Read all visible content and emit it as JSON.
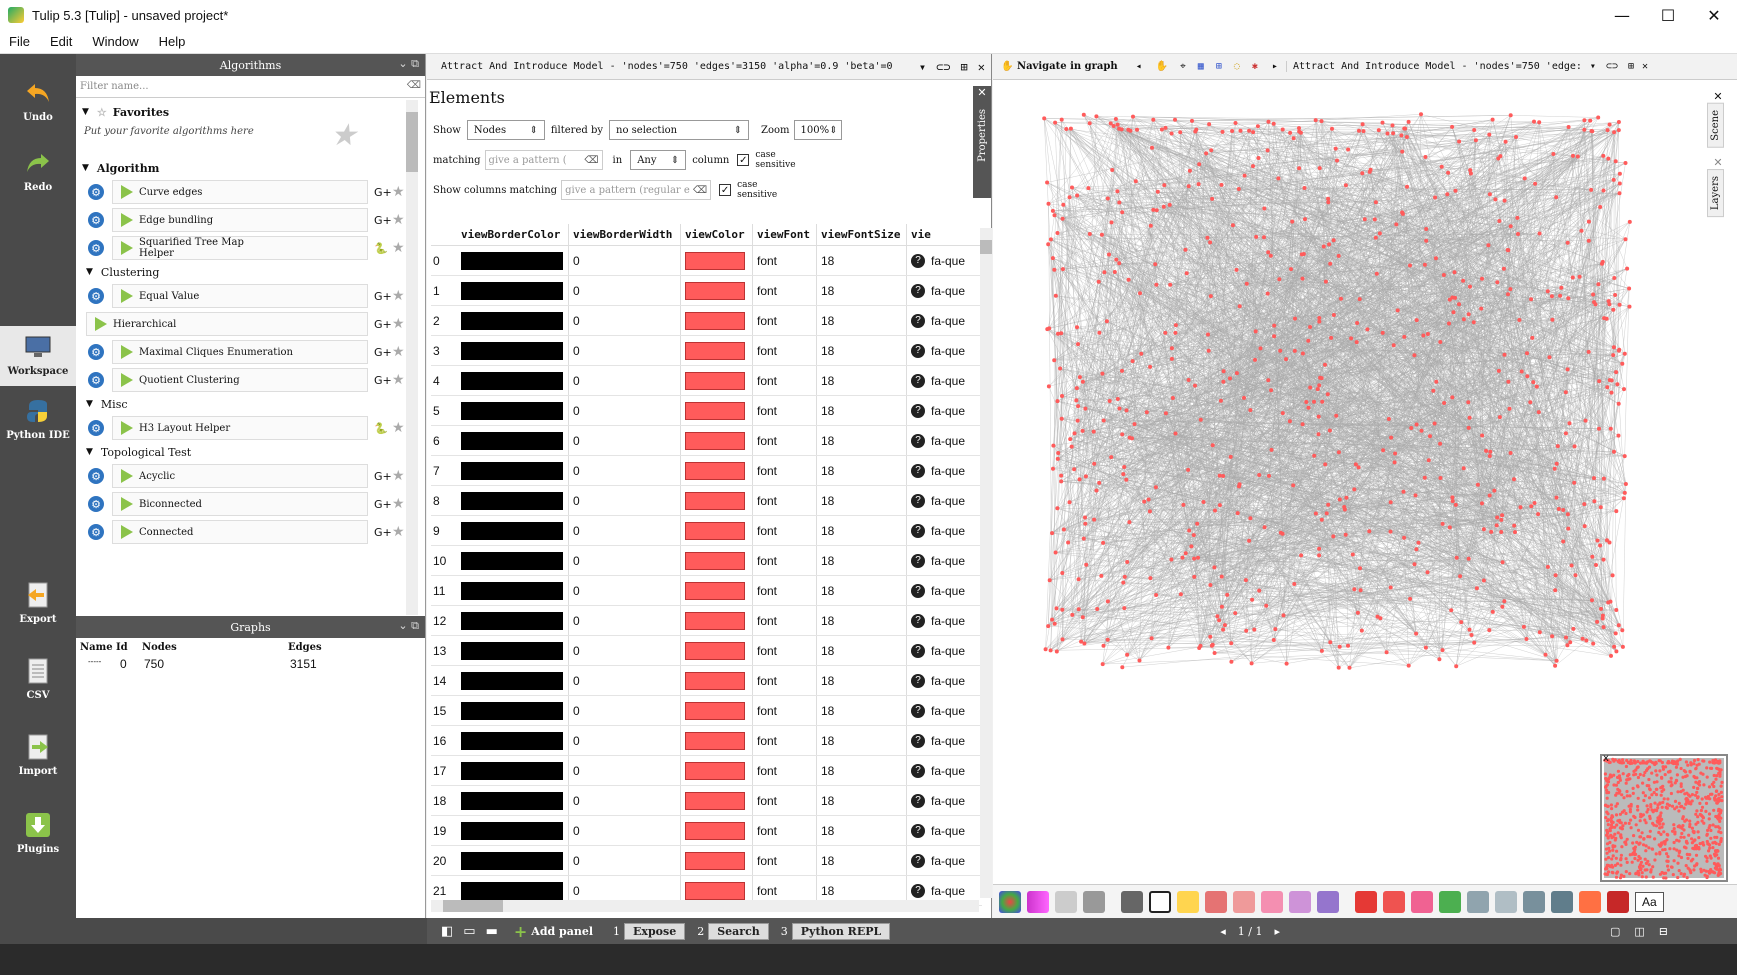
{
  "window": {
    "title": "Tulip 5.3 [Tulip] - unsaved project*",
    "min_symbol": "—",
    "max_symbol": "☐",
    "close_symbol": "✕"
  },
  "menu": [
    "File",
    "Edit",
    "Window",
    "Help"
  ],
  "lefttoolbar": {
    "undo": "Undo",
    "redo": "Redo",
    "workspace": "Workspace",
    "python_ide": "Python IDE",
    "export": "Export",
    "csv": "CSV",
    "import": "Import",
    "plugins": "Plugins"
  },
  "algorithms": {
    "header": "Algorithms",
    "filter_placeholder": "Filter name...",
    "favorites_label": "Favorites",
    "favorites_hint": "Put your favorite algorithms here",
    "algorithm_label": "Algorithm",
    "items_top": [
      "Curve edges",
      "Edge bundling",
      "Squarified Tree Map Helper"
    ],
    "clustering_label": "Clustering",
    "clustering_items": [
      "Equal Value",
      "Hierarchical",
      "Maximal Cliques Enumeration",
      "Quotient Clustering"
    ],
    "misc_label": "Misc",
    "misc_items": [
      "H3 Layout Helper"
    ],
    "topo_label": "Topological Test",
    "topo_items": [
      "Acyclic",
      "Biconnected",
      "Connected"
    ]
  },
  "graphs": {
    "header": "Graphs",
    "columns": [
      "Name",
      "Id",
      "Nodes",
      "Edges"
    ],
    "row": {
      "name": "-----",
      "id": "0",
      "nodes": "750",
      "edges": "3151"
    }
  },
  "spreadsheet": {
    "view_title": "Attract And Introduce Model - 'nodes'=750 'edges'=3150 'alpha'=0.9 'beta'=0",
    "heading": "Elements",
    "show_label": "Show",
    "show_value": "Nodes",
    "filtered_by_label": "filtered by",
    "filtered_by_value": "no selection",
    "zoom_label": "Zoom",
    "zoom_value": "100%",
    "matching_label": "matching",
    "pattern_placeholder": "give a pattern (",
    "in_label": "in",
    "in_value": "Any",
    "column_label": "column",
    "case_sensitive": "case sensitive",
    "show_columns_label": "Show columns matching",
    "columns_pattern_placeholder": "give a pattern (regular e",
    "properties_tab": "Properties",
    "columns": [
      "viewBorderColor",
      "viewBorderWidth",
      "viewColor",
      "viewFont",
      "viewFontSize",
      "vie"
    ],
    "rows": [
      {
        "id": "0",
        "bw": "0",
        "font": "font",
        "size": "18",
        "icon": "fa-que"
      },
      {
        "id": "1",
        "bw": "0",
        "font": "font",
        "size": "18",
        "icon": "fa-que"
      },
      {
        "id": "2",
        "bw": "0",
        "font": "font",
        "size": "18",
        "icon": "fa-que"
      },
      {
        "id": "3",
        "bw": "0",
        "font": "font",
        "size": "18",
        "icon": "fa-que"
      },
      {
        "id": "4",
        "bw": "0",
        "font": "font",
        "size": "18",
        "icon": "fa-que"
      },
      {
        "id": "5",
        "bw": "0",
        "font": "font",
        "size": "18",
        "icon": "fa-que"
      },
      {
        "id": "6",
        "bw": "0",
        "font": "font",
        "size": "18",
        "icon": "fa-que"
      },
      {
        "id": "7",
        "bw": "0",
        "font": "font",
        "size": "18",
        "icon": "fa-que"
      },
      {
        "id": "8",
        "bw": "0",
        "font": "font",
        "size": "18",
        "icon": "fa-que"
      },
      {
        "id": "9",
        "bw": "0",
        "font": "font",
        "size": "18",
        "icon": "fa-que"
      },
      {
        "id": "10",
        "bw": "0",
        "font": "font",
        "size": "18",
        "icon": "fa-que"
      },
      {
        "id": "11",
        "bw": "0",
        "font": "font",
        "size": "18",
        "icon": "fa-que"
      },
      {
        "id": "12",
        "bw": "0",
        "font": "font",
        "size": "18",
        "icon": "fa-que"
      },
      {
        "id": "13",
        "bw": "0",
        "font": "font",
        "size": "18",
        "icon": "fa-que"
      },
      {
        "id": "14",
        "bw": "0",
        "font": "font",
        "size": "18",
        "icon": "fa-que"
      },
      {
        "id": "15",
        "bw": "0",
        "font": "font",
        "size": "18",
        "icon": "fa-que"
      },
      {
        "id": "16",
        "bw": "0",
        "font": "font",
        "size": "18",
        "icon": "fa-que"
      },
      {
        "id": "17",
        "bw": "0",
        "font": "font",
        "size": "18",
        "icon": "fa-que"
      },
      {
        "id": "18",
        "bw": "0",
        "font": "font",
        "size": "18",
        "icon": "fa-que"
      },
      {
        "id": "19",
        "bw": "0",
        "font": "font",
        "size": "18",
        "icon": "fa-que"
      },
      {
        "id": "20",
        "bw": "0",
        "font": "font",
        "size": "18",
        "icon": "fa-que"
      },
      {
        "id": "21",
        "bw": "0",
        "font": "font",
        "size": "18",
        "icon": "fa-que"
      }
    ],
    "border_color": "#000000",
    "node_color": "#ff5b5b"
  },
  "graphview": {
    "navigate_label": "Navigate in graph",
    "view_title": "Attract And Introduce Model - 'nodes'=750 'edge:",
    "scene_tab": "Scene",
    "layers_tab": "Layers",
    "page_label": "1 / 1",
    "text_button": "Aa",
    "edge_color": "#aaaaaa",
    "node_color": "#ff5b5b"
  },
  "statusbar": {
    "add_panel": "Add panel",
    "expose_num": "1",
    "expose": "Expose",
    "search_num": "2",
    "search": "Search",
    "python_num": "3",
    "python": "Python REPL"
  }
}
